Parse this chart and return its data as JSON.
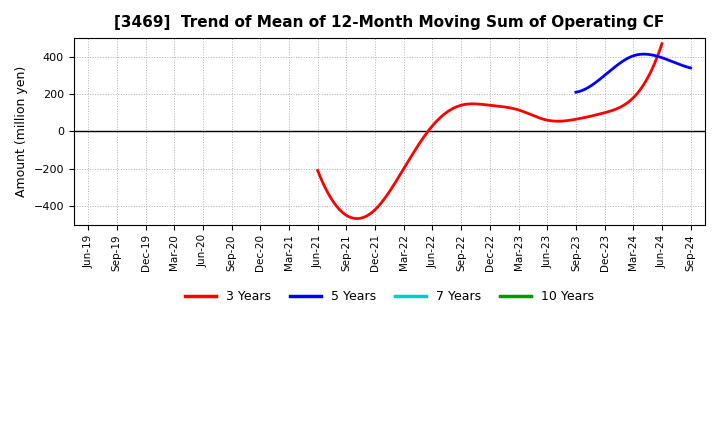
{
  "title": "[3469]  Trend of Mean of 12-Month Moving Sum of Operating CF",
  "ylabel": "Amount (million yen)",
  "background_color": "#ffffff",
  "plot_background": "#ffffff",
  "grid_color": "#b0b0b0",
  "ylim": [
    -500,
    500
  ],
  "yticks": [
    -400,
    -200,
    0,
    200,
    400
  ],
  "legend_entries": [
    "3 Years",
    "5 Years",
    "7 Years",
    "10 Years"
  ],
  "legend_colors": [
    "#ff0000",
    "#0000ff",
    "#00cccc",
    "#009900"
  ],
  "x_labels": [
    "Jun-19",
    "Sep-19",
    "Dec-19",
    "Mar-20",
    "Jun-20",
    "Sep-20",
    "Dec-20",
    "Mar-21",
    "Jun-21",
    "Sep-21",
    "Dec-21",
    "Mar-22",
    "Jun-22",
    "Sep-22",
    "Dec-22",
    "Mar-23",
    "Jun-23",
    "Sep-23",
    "Dec-23",
    "Mar-24",
    "Jun-24",
    "Sep-24"
  ],
  "series_3y_knots_x": [
    8,
    9,
    10,
    11,
    12,
    13,
    14,
    15,
    16,
    17,
    18,
    19,
    20
  ],
  "series_3y_knots_y": [
    -210,
    -450,
    -420,
    -200,
    30,
    140,
    140,
    115,
    60,
    65,
    100,
    180,
    470
  ],
  "series_5y_knots_x": [
    17,
    18,
    19,
    20,
    21
  ],
  "series_5y_knots_y": [
    210,
    300,
    405,
    395,
    340
  ],
  "series_7y_knots_x": [],
  "series_7y_knots_y": [],
  "series_10y_knots_x": [],
  "series_10y_knots_y": []
}
